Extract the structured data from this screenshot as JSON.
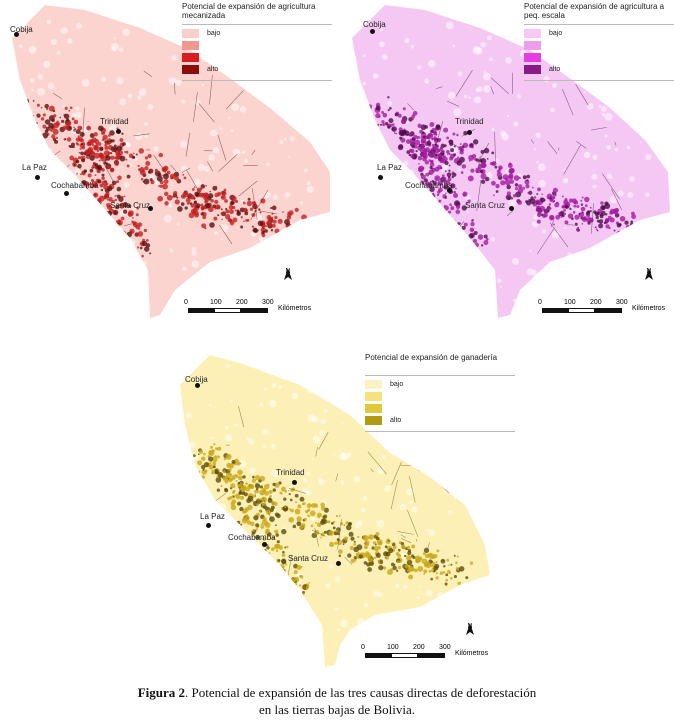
{
  "maps": [
    {
      "id": "mecanizada",
      "legend_title": "Potencial de expansión de agricultura mecanizada",
      "legend_items": [
        {
          "label": "bajo",
          "color": "#f7d0cc"
        },
        {
          "label": "",
          "color": "#ee9890"
        },
        {
          "label": "",
          "color": "#d81e1e"
        },
        {
          "label": "alto",
          "color": "#8a0d0d"
        }
      ],
      "base_color": "#fbd4d0",
      "hot_color": "#c41e1e",
      "dark_color": "#5a0f0f",
      "scale_ticks": [
        "0",
        "100",
        "200",
        "300"
      ],
      "scale_unit": "Kilómetros",
      "north_label": "N",
      "cities": [
        {
          "name": "Cobija"
        },
        {
          "name": "Trinidad"
        },
        {
          "name": "La Paz"
        },
        {
          "name": "Cochabamba"
        },
        {
          "name": "Santa Cruz"
        }
      ]
    },
    {
      "id": "peq_escala",
      "legend_title": "Potencial de expansión de agricultura a peq. escala",
      "legend_items": [
        {
          "label": "bajo",
          "color": "#f6c9f4"
        },
        {
          "label": "",
          "color": "#ee9cec"
        },
        {
          "label": "",
          "color": "#e43de0"
        },
        {
          "label": "alto",
          "color": "#8a1a86"
        }
      ],
      "base_color": "#f5c8f4",
      "hot_color": "#a21aa0",
      "dark_color": "#4d0d4a",
      "scale_ticks": [
        "0",
        "100",
        "200",
        "300"
      ],
      "scale_unit": "Kilómetros",
      "north_label": "N",
      "cities": [
        {
          "name": "Cobija"
        },
        {
          "name": "Trinidad"
        },
        {
          "name": "La Paz"
        },
        {
          "name": "Cochabamba"
        },
        {
          "name": "Santa Cruz"
        }
      ]
    },
    {
      "id": "ganaderia",
      "legend_title": "Potencial de expansión de ganadería",
      "legend_items": [
        {
          "label": "bajo",
          "color": "#fbf2c2"
        },
        {
          "label": "",
          "color": "#f3e27e"
        },
        {
          "label": "",
          "color": "#e1c73a"
        },
        {
          "label": "alto",
          "color": "#b29a12"
        }
      ],
      "base_color": "#fcf0b6",
      "hot_color": "#c9a816",
      "dark_color": "#5d4d0a",
      "scale_ticks": [
        "0",
        "100",
        "200",
        "300"
      ],
      "scale_unit": "Kilómetros",
      "north_label": "N",
      "cities": [
        {
          "name": "Cobija"
        },
        {
          "name": "Trinidad"
        },
        {
          "name": "La Paz"
        },
        {
          "name": "Cochabamba"
        },
        {
          "name": "Santa Cruz"
        }
      ]
    }
  ],
  "caption": {
    "label": "Figura 2",
    "text_line1": ". Potencial de expansión de las tres causas directas de deforestación",
    "text_line2": "en las tierras bajas de Bolivia."
  }
}
